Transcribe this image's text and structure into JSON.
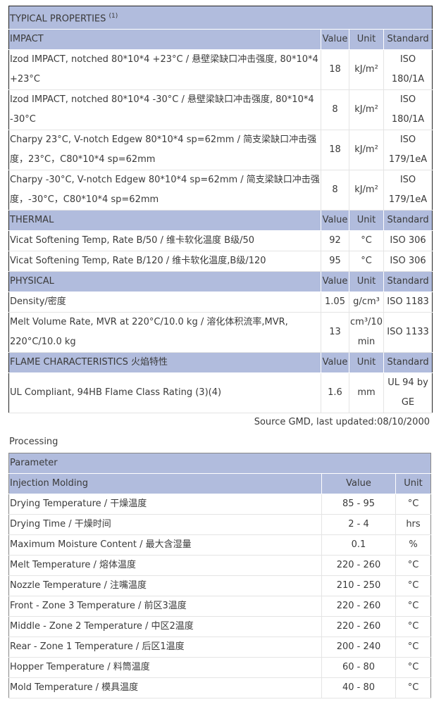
{
  "properties": {
    "title": "TYPICAL PROPERTIES",
    "title_note": "(1)",
    "col_value": "Value",
    "col_unit": "Unit",
    "col_standard": "Standard",
    "sections": [
      {
        "name": "IMPACT",
        "rows": [
          {
            "label": "Izod IMPACT, notched 80*10*4 +23°C / 悬壁梁缺口冲击强度, 80*10*4 +23°C",
            "value": "18",
            "unit": "kJ/m²",
            "standard": "ISO 180/1A"
          },
          {
            "label": "Izod IMPACT, notched 80*10*4 -30°C / 悬壁梁缺口冲击强度, 80*10*4 -30°C",
            "value": "8",
            "unit": "kJ/m²",
            "standard": "ISO 180/1A"
          },
          {
            "label": "Charpy 23°C, V-notch Edgew 80*10*4 sp=62mm / 简支梁缺口冲击强度，23°C，C80*10*4 sp=62mm",
            "value": "18",
            "unit": "kJ/m²",
            "standard": "ISO 179/1eA"
          },
          {
            "label": "Charpy -30°C, V-notch Edgew 80*10*4 sp=62mm / 简支梁缺口冲击强度，-30°C，C80*10*4 sp=62mm",
            "value": "8",
            "unit": "kJ/m²",
            "standard": "ISO 179/1eA"
          }
        ]
      },
      {
        "name": "THERMAL",
        "rows": [
          {
            "label": "Vicat Softening Temp, Rate B/50 / 维卡软化温度 B级/50",
            "value": "92",
            "unit": "°C",
            "standard": "ISO 306"
          },
          {
            "label": "Vicat Softening Temp, Rate B/120 / 维卡软化温度,B级/120",
            "value": "95",
            "unit": "°C",
            "standard": "ISO 306"
          }
        ]
      },
      {
        "name": "PHYSICAL",
        "rows": [
          {
            "label": "Density/密度",
            "value": "1.05",
            "unit": "g/cm³",
            "standard": "ISO 1183"
          },
          {
            "label": "Melt Volume Rate, MVR at 220°C/10.0 kg / 溶化体积流率,MVR, 220°C/10.0 kg",
            "value": "13",
            "unit": "cm³/10 min",
            "standard": "ISO 1133"
          }
        ]
      },
      {
        "name": "FLAME CHARACTERISTICS 火焰特性",
        "rows": [
          {
            "label": "UL Compliant, 94HB Flame Class Rating (3)(4)",
            "value": "1.6",
            "unit": "mm",
            "standard": "UL 94 by GE"
          }
        ]
      }
    ],
    "source": "Source GMD, last updated:08/10/2000"
  },
  "processing": {
    "title": "Processing",
    "parameter": "Parameter",
    "group": "Injection Molding",
    "col_value": "Value",
    "col_unit": "Unit",
    "rows": [
      {
        "label": "Drying Temperature / 干燥温度",
        "value": "85 - 95",
        "unit": "°C"
      },
      {
        "label": "Drying Time / 干燥时间",
        "value": "2 - 4",
        "unit": "hrs"
      },
      {
        "label": "Maximum Moisture Content / 最大含湿量",
        "value": "0.1",
        "unit": "%"
      },
      {
        "label": "Melt Temperature / 熔体温度",
        "value": "220 - 260",
        "unit": "°C"
      },
      {
        "label": "Nozzle Temperature / 注嘴温度",
        "value": "210 - 250",
        "unit": "°C"
      },
      {
        "label": "Front - Zone 3 Temperature / 前区3温度",
        "value": "220 - 260",
        "unit": "°C"
      },
      {
        "label": "Middle - Zone 2 Temperature / 中区2温度",
        "value": "220 - 260",
        "unit": "°C"
      },
      {
        "label": "Rear - Zone 1 Temperature / 后区1温度",
        "value": "200 - 240",
        "unit": "°C"
      },
      {
        "label": "Hopper Temperature / 料筒温度",
        "value": "60 - 80",
        "unit": "°C"
      },
      {
        "label": "Mold Temperature / 模具温度",
        "value": "40 - 80",
        "unit": "°C"
      }
    ]
  },
  "colors": {
    "header_bg": "#b1bcdd"
  }
}
